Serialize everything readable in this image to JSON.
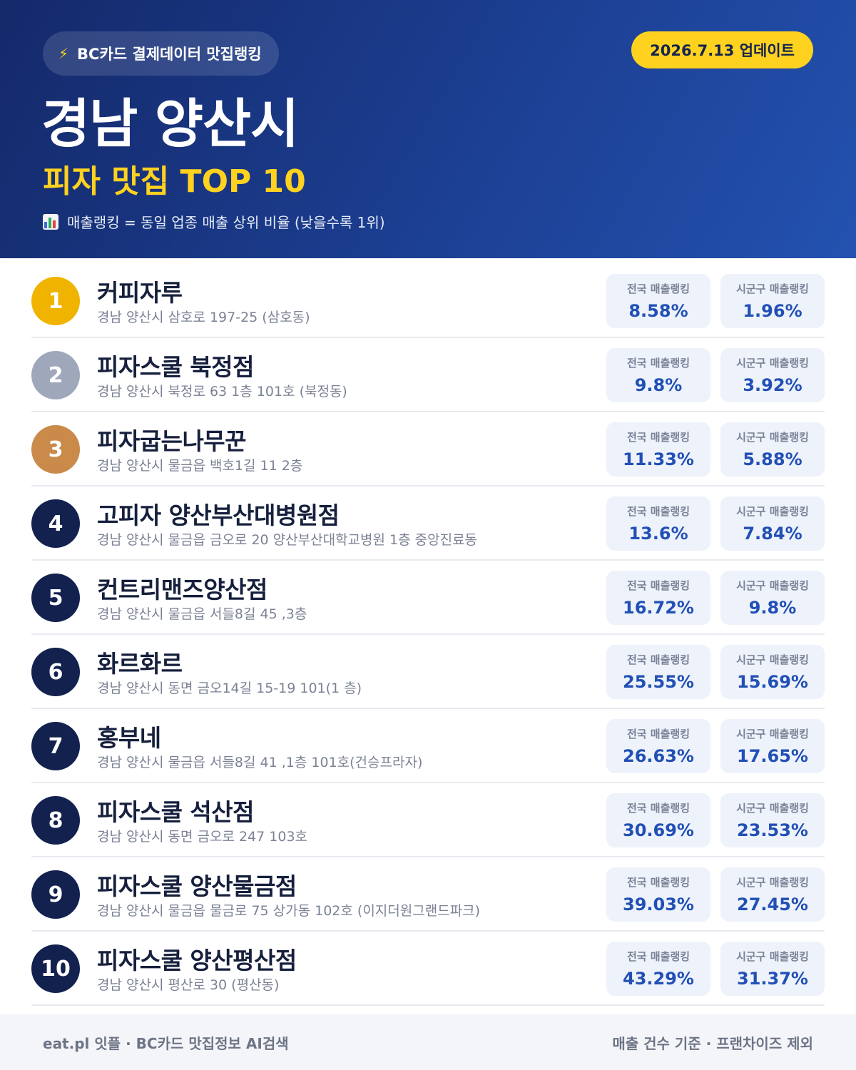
{
  "header": {
    "badge": "BC카드 결제데이터 맛집랭킹",
    "badge_icon": "lightning-icon",
    "update": "2026.7.13 업데이트",
    "title": "경남 양산시",
    "subtitle": "피자 맛집 TOP 10",
    "note": "매출랭킹 = 동일 업종 매출 상위 비율 (낮을수록 1위)",
    "note_icon": "bar-chart-icon"
  },
  "colors": {
    "gold": "#f0b400",
    "silver": "#9fa8bb",
    "bronze": "#c98a4a",
    "navy": "#13214f",
    "accent_yellow": "#ffd21f",
    "value_blue": "#2150b5"
  },
  "restaurants": [
    {
      "rank": "1",
      "name": "커피자루",
      "address": "경남 양산시 삼호로 197-25 (삼호동)",
      "national_label": "전국 매출랭킹",
      "national": "8.58%",
      "local_label": "시군구 매출랭킹",
      "local": "1.96%"
    },
    {
      "rank": "2",
      "name": "피자스쿨 북정점",
      "address": "경남 양산시 북정로 63 1층 101호 (북정동)",
      "national_label": "전국 매출랭킹",
      "national": "9.8%",
      "local_label": "시군구 매출랭킹",
      "local": "3.92%"
    },
    {
      "rank": "3",
      "name": "피자굽는나무꾼",
      "address": "경남 양산시 물금읍 백호1길 11 2층",
      "national_label": "전국 매출랭킹",
      "national": "11.33%",
      "local_label": "시군구 매출랭킹",
      "local": "5.88%"
    },
    {
      "rank": "4",
      "name": "고피자 양산부산대병원점",
      "address": "경남 양산시 물금읍 금오로 20 양산부산대학교병원 1층 중앙진료동",
      "national_label": "전국 매출랭킹",
      "national": "13.6%",
      "local_label": "시군구 매출랭킹",
      "local": "7.84%"
    },
    {
      "rank": "5",
      "name": "컨트리맨즈양산점",
      "address": "경남 양산시 물금읍 서들8길 45 ,3층",
      "national_label": "전국 매출랭킹",
      "national": "16.72%",
      "local_label": "시군구 매출랭킹",
      "local": "9.8%"
    },
    {
      "rank": "6",
      "name": "화르화르",
      "address": "경남 양산시 동면 금오14길 15-19 101(1 층)",
      "national_label": "전국 매출랭킹",
      "national": "25.55%",
      "local_label": "시군구 매출랭킹",
      "local": "15.69%"
    },
    {
      "rank": "7",
      "name": "홍부네",
      "address": "경남 양산시 물금읍 서들8길 41 ,1층 101호(건승프라자)",
      "national_label": "전국 매출랭킹",
      "national": "26.63%",
      "local_label": "시군구 매출랭킹",
      "local": "17.65%"
    },
    {
      "rank": "8",
      "name": "피자스쿨 석산점",
      "address": "경남 양산시 동면 금오로 247 103호",
      "national_label": "전국 매출랭킹",
      "national": "30.69%",
      "local_label": "시군구 매출랭킹",
      "local": "23.53%"
    },
    {
      "rank": "9",
      "name": "피자스쿨 양산물금점",
      "address": "경남 양산시 물금읍 물금로 75 상가동 102호 (이지더원그랜드파크)",
      "national_label": "전국 매출랭킹",
      "national": "39.03%",
      "local_label": "시군구 매출랭킹",
      "local": "27.45%"
    },
    {
      "rank": "10",
      "name": "피자스쿨 양산평산점",
      "address": "경남 양산시 평산로 30 (평산동)",
      "national_label": "전국 매출랭킹",
      "national": "43.29%",
      "local_label": "시군구 매출랭킹",
      "local": "31.37%"
    }
  ],
  "footer": {
    "left": "eat.pl 잇플 · BC카드 맛집정보 AI검색",
    "right": "매출 건수 기준 · 프랜차이즈 제외"
  }
}
